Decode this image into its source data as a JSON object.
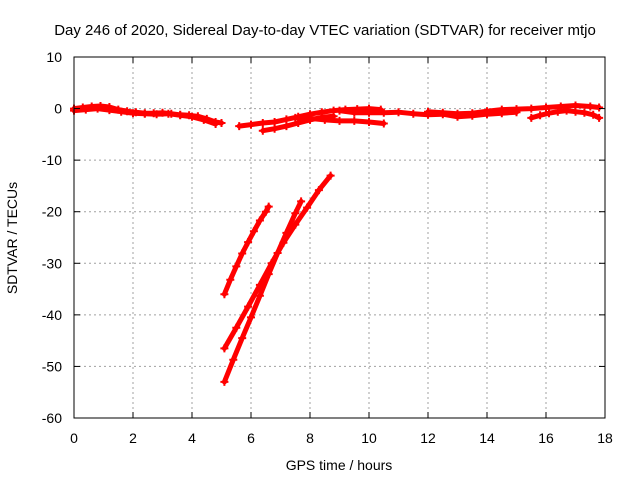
{
  "chart_data": {
    "type": "scatter",
    "title": "Day 246 of 2020, Sidereal Day-to-day VTEC variation (SDTVAR) for receiver mtjo",
    "xlabel": "GPS time / hours",
    "ylabel": "SDTVAR / TECUs",
    "xlim": [
      0,
      18
    ],
    "ylim": [
      -60,
      10
    ],
    "x_ticks": [
      0,
      2,
      4,
      6,
      8,
      10,
      12,
      14,
      16,
      18
    ],
    "y_ticks": [
      10,
      0,
      -10,
      -20,
      -30,
      -40,
      -50,
      -60
    ],
    "x_tick_labels": [
      "0",
      "2",
      "4",
      "6",
      "8",
      "10",
      "12",
      "14",
      "16",
      "18"
    ],
    "y_tick_labels": [
      "10",
      "0",
      "-10",
      "-20",
      "-30",
      "-40",
      "-50",
      "-60"
    ],
    "grid": true,
    "marker": "+",
    "color": "#ff0000",
    "series": [
      {
        "name": "track-1",
        "x": [
          0.0,
          0.3,
          0.6,
          0.9,
          1.2,
          1.5,
          1.8,
          2.1,
          2.4,
          2.7,
          3.0,
          3.3,
          3.6,
          3.9,
          4.2,
          4.5,
          4.8,
          5.0
        ],
        "y": [
          0.0,
          0.2,
          0.4,
          0.5,
          0.3,
          -0.2,
          -0.5,
          -0.7,
          -0.9,
          -0.9,
          -0.8,
          -1.0,
          -1.2,
          -1.3,
          -1.5,
          -2.0,
          -2.6,
          -2.8
        ]
      },
      {
        "name": "track-2",
        "x": [
          0.0,
          0.4,
          0.8,
          1.2,
          1.6,
          2.0,
          2.4,
          2.8,
          3.2,
          3.6,
          4.0,
          4.4,
          4.8
        ],
        "y": [
          -0.4,
          -0.2,
          0.0,
          -0.3,
          -0.6,
          -0.9,
          -1.0,
          -1.1,
          -1.0,
          -1.3,
          -1.6,
          -2.2,
          -3.0
        ]
      },
      {
        "name": "track-3",
        "x": [
          5.6,
          6.0,
          6.4,
          6.8,
          7.2,
          7.6,
          8.0,
          8.4,
          8.8,
          9.2,
          9.6,
          10.0,
          10.4
        ],
        "y": [
          -3.4,
          -3.1,
          -2.8,
          -2.6,
          -2.1,
          -1.6,
          -1.1,
          -0.7,
          -0.4,
          -0.2,
          -0.1,
          0.0,
          -0.2
        ]
      },
      {
        "name": "track-4",
        "x": [
          6.4,
          6.8,
          7.2,
          7.6,
          8.0,
          8.4,
          8.8
        ],
        "y": [
          -4.3,
          -3.9,
          -3.4,
          -2.8,
          -2.2,
          -1.7,
          -1.5
        ]
      },
      {
        "name": "track-5",
        "x": [
          7.5,
          8.0,
          8.5,
          9.0,
          9.5,
          10.0,
          10.5
        ],
        "y": [
          -1.8,
          -1.9,
          -2.2,
          -2.4,
          -2.4,
          -2.6,
          -2.9
        ]
      },
      {
        "name": "track-6",
        "x": [
          9.0,
          9.5,
          10.0,
          10.5,
          11.0,
          11.5,
          12.0,
          12.5,
          13.0,
          13.5,
          14.0,
          14.5,
          15.0
        ],
        "y": [
          -0.4,
          -0.8,
          -0.8,
          -0.8,
          -0.7,
          -1.0,
          -1.2,
          -1.1,
          -1.6,
          -1.4,
          -1.1,
          -0.9,
          -0.7
        ]
      },
      {
        "name": "track-7",
        "x": [
          12.0,
          12.5,
          13.0,
          13.5,
          14.0,
          14.5,
          15.0,
          15.5,
          16.0,
          16.5,
          17.0,
          17.5,
          17.8
        ],
        "y": [
          -0.6,
          -0.8,
          -1.0,
          -0.9,
          -0.5,
          -0.2,
          -0.1,
          0.0,
          0.2,
          0.4,
          0.6,
          0.4,
          0.2
        ]
      },
      {
        "name": "track-8",
        "x": [
          15.5,
          15.8,
          16.1,
          16.4,
          16.7,
          17.0,
          17.3,
          17.6,
          17.8
        ],
        "y": [
          -1.8,
          -1.3,
          -0.9,
          -0.6,
          -0.4,
          -0.6,
          -0.8,
          -1.2,
          -1.8
        ]
      },
      {
        "name": "track-9",
        "x": [
          5.1,
          5.3,
          5.5,
          5.7,
          5.9,
          6.1,
          6.3,
          6.5,
          6.6
        ],
        "y": [
          -36.0,
          -33.2,
          -30.6,
          -28.1,
          -25.9,
          -23.8,
          -21.7,
          -20.0,
          -19.0
        ]
      },
      {
        "name": "track-10",
        "x": [
          5.1,
          5.5,
          5.9,
          6.3,
          6.7,
          7.1,
          7.5,
          7.9,
          8.3,
          8.7
        ],
        "y": [
          -46.5,
          -42.5,
          -38.4,
          -34.2,
          -30.0,
          -26.0,
          -22.5,
          -19.2,
          -15.8,
          -13.0
        ]
      },
      {
        "name": "track-11",
        "x": [
          5.1,
          5.4,
          5.7,
          6.0,
          6.3,
          6.6,
          6.9,
          7.2,
          7.5,
          7.7
        ],
        "y": [
          -53.0,
          -48.7,
          -44.5,
          -40.5,
          -36.3,
          -32.1,
          -28.0,
          -24.1,
          -20.3,
          -18.0
        ]
      }
    ]
  }
}
